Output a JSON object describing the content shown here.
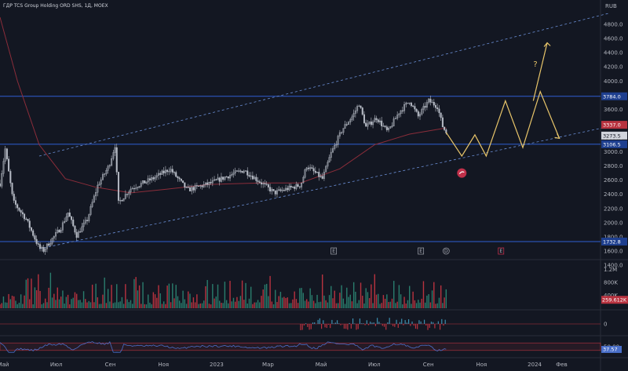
{
  "header": {
    "instrument": "ГДР TCS Group Holding ORD SHS, 1Д, MOEX",
    "currency": "RUB"
  },
  "colors": {
    "background": "#131722",
    "up": "#b7bcc6",
    "down": "#b7bcc6",
    "ma": "#8b2d3a",
    "channel": "#6b8fd6",
    "hline": "#2f5fd3",
    "forecast": "#e8c56a",
    "vol_up": "#2a7d6d",
    "vol_down": "#b8323f",
    "rsi": "#4a6fc9",
    "rsi_band": "#b8323f"
  },
  "chart_data": {
    "type": "candlestick",
    "price_axis": {
      "ylim": [
        1400,
        4900
      ],
      "ticks": [
        "4800.0",
        "4600.0",
        "4400.0",
        "4200.0",
        "4000.0",
        "3800.0",
        "3600.0",
        "3400.0",
        "3200.0",
        "3000.0",
        "2800.0",
        "2600.0",
        "2400.0",
        "2200.0",
        "2000.0",
        "1800.0",
        "1600.0",
        "1400.0"
      ]
    },
    "time_axis": {
      "labels": [
        "Май",
        "Июл",
        "Сен",
        "Ноя",
        "2023",
        "Мар",
        "Май",
        "Июл",
        "Сен",
        "Ноя",
        "2024",
        "Фев"
      ],
      "label_days": [
        0,
        61,
        123,
        184,
        245,
        304,
        365,
        426,
        488,
        549,
        610,
        641
      ]
    },
    "price_path": [
      [
        0,
        2550
      ],
      [
        6,
        3040
      ],
      [
        15,
        2300
      ],
      [
        30,
        2050
      ],
      [
        45,
        1640
      ],
      [
        50,
        1610
      ],
      [
        70,
        1930
      ],
      [
        78,
        2140
      ],
      [
        88,
        1820
      ],
      [
        100,
        2040
      ],
      [
        112,
        2520
      ],
      [
        125,
        2800
      ],
      [
        132,
        3090
      ],
      [
        136,
        2280
      ],
      [
        150,
        2480
      ],
      [
        175,
        2620
      ],
      [
        195,
        2760
      ],
      [
        215,
        2460
      ],
      [
        240,
        2550
      ],
      [
        270,
        2700
      ],
      [
        280,
        2740
      ],
      [
        300,
        2560
      ],
      [
        315,
        2420
      ],
      [
        330,
        2480
      ],
      [
        345,
        2530
      ],
      [
        352,
        2800
      ],
      [
        370,
        2620
      ],
      [
        380,
        2980
      ],
      [
        393,
        3320
      ],
      [
        405,
        3510
      ],
      [
        412,
        3680
      ],
      [
        420,
        3350
      ],
      [
        432,
        3480
      ],
      [
        445,
        3280
      ],
      [
        458,
        3560
      ],
      [
        470,
        3720
      ],
      [
        480,
        3500
      ],
      [
        492,
        3720
      ],
      [
        502,
        3640
      ],
      [
        508,
        3360
      ],
      [
        512,
        3273.5
      ]
    ],
    "ma_path": [
      [
        0,
        5000
      ],
      [
        20,
        4000
      ],
      [
        45,
        3100
      ],
      [
        75,
        2620
      ],
      [
        110,
        2500
      ],
      [
        150,
        2420
      ],
      [
        190,
        2470
      ],
      [
        240,
        2540
      ],
      [
        300,
        2560
      ],
      [
        345,
        2560
      ],
      [
        390,
        2760
      ],
      [
        430,
        3100
      ],
      [
        470,
        3250
      ],
      [
        512,
        3337.0
      ]
    ],
    "horizontal_levels": [
      {
        "price": 3784.0,
        "label": "3784.0"
      },
      {
        "price": 3106.5,
        "label": "3106.5"
      },
      {
        "price": 1732.8,
        "label": "1732.8"
      }
    ],
    "last_price": {
      "value": 3273.5,
      "label": "3273.5"
    },
    "ma_last": {
      "value": 3337.0,
      "label": "3337.0"
    },
    "channel": {
      "upper": [
        [
          45,
          2940
        ],
        [
          700,
          4960
        ]
      ],
      "lower": [
        [
          45,
          1630
        ],
        [
          700,
          3360
        ]
      ]
    },
    "forecast_path": [
      [
        512,
        3273.5
      ],
      [
        530,
        2940
      ],
      [
        545,
        3240
      ],
      [
        558,
        2940
      ],
      [
        580,
        3720
      ],
      [
        600,
        3060
      ],
      [
        620,
        3850
      ],
      [
        642,
        3190
      ]
    ],
    "forecast_arrow": [
      [
        612,
        3720
      ],
      [
        628,
        4540
      ]
    ],
    "forecast_mark": "?",
    "events": [
      {
        "day": 383,
        "label": "E"
      },
      {
        "day": 483,
        "label": "E"
      },
      {
        "day": 512,
        "label": "D"
      },
      {
        "day": 575,
        "label": "E"
      }
    ],
    "volume": {
      "ylim": [
        0,
        1400000
      ],
      "ticks": [
        "1.2M",
        "800K",
        "400K"
      ],
      "last_label": "259.612K"
    },
    "oscillator": {
      "ticks": [
        "0"
      ]
    },
    "rsi": {
      "ylim": [
        0,
        100
      ],
      "ticks": [
        "50.00"
      ],
      "last_value": 37.57,
      "last_label": "37.57"
    }
  }
}
